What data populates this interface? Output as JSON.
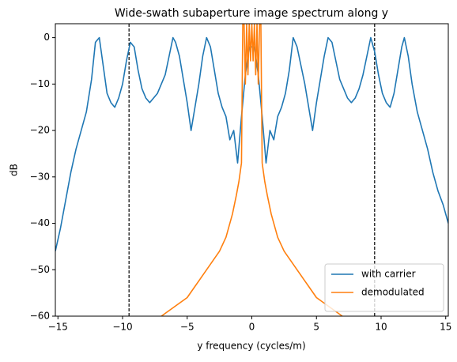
{
  "chart_data": {
    "type": "line",
    "title": "Wide-swath subaperture image spectrum along y",
    "x_label": "y frequency (cycles/m)",
    "y_label": "dB",
    "xlim": [
      -15.2,
      15.2
    ],
    "ylim": [
      -60,
      3
    ],
    "xticks": [
      {
        "value": -15,
        "label": "−15"
      },
      {
        "value": -10,
        "label": "−10"
      },
      {
        "value": -5,
        "label": "−5"
      },
      0,
      5,
      10,
      15
    ],
    "yticks": [
      0,
      {
        "value": -10,
        "label": "−10"
      },
      {
        "value": -20,
        "label": "−20"
      },
      {
        "value": -30,
        "label": "−30"
      },
      {
        "value": -40,
        "label": "−40"
      },
      {
        "value": -50,
        "label": "−50"
      },
      {
        "value": -60,
        "label": "−60"
      }
    ],
    "vlines": [
      -9.5,
      9.5
    ],
    "vline_color": "#000000",
    "legend": "lower right",
    "grid": false,
    "series": [
      {
        "name": "with carrier",
        "color": "#1f77b4",
        "x": [
          -15.2,
          -14.8,
          -14.4,
          -14,
          -13.6,
          -13.2,
          -12.8,
          -12.4,
          -12.1,
          -11.8,
          -11.5,
          -11.2,
          -10.9,
          -10.6,
          -10.3,
          -10,
          -9.7,
          -9.4,
          -9.1,
          -8.8,
          -8.5,
          -8.2,
          -7.9,
          -7.6,
          -7.3,
          -7,
          -6.7,
          -6.4,
          -6.1,
          -5.9,
          -5.6,
          -5.3,
          -5,
          -4.7,
          -4.4,
          -4.1,
          -3.8,
          -3.5,
          -3.2,
          -2.9,
          -2.6,
          -2.3,
          -2,
          -1.7,
          -1.4,
          -1.1,
          -0.8,
          -0.5,
          -0.2,
          0.2,
          0.5,
          0.8,
          1.1,
          1.4,
          1.7,
          2,
          2.3,
          2.6,
          2.9,
          3.2,
          3.5,
          3.8,
          4.1,
          4.4,
          4.7,
          5,
          5.3,
          5.6,
          5.9,
          6.2,
          6.5,
          6.8,
          7.1,
          7.4,
          7.7,
          8,
          8.3,
          8.6,
          8.9,
          9.2,
          9.5,
          9.8,
          10.1,
          10.4,
          10.7,
          11,
          11.3,
          11.6,
          11.8,
          12.1,
          12.4,
          12.8,
          13.2,
          13.6,
          14,
          14.4,
          14.8,
          15.2
        ],
        "values": [
          -46,
          -41,
          -35,
          -29,
          -24,
          -20,
          -16,
          -9,
          -1,
          0,
          -6,
          -12,
          -14,
          -15,
          -13,
          -10,
          -5,
          -1,
          -2,
          -7,
          -11,
          -13,
          -14,
          -13,
          -12,
          -10,
          -8,
          -4,
          0,
          -1,
          -4,
          -9,
          -14,
          -20,
          -15,
          -10,
          -4,
          0,
          -2,
          -7,
          -12,
          -15,
          -17,
          -22,
          -20,
          -27,
          -17,
          -8,
          -2,
          -2,
          -8,
          -17,
          -27,
          -20,
          -22,
          -17,
          -15,
          -12,
          -7,
          0,
          -2,
          -6,
          -10,
          -15,
          -20,
          -14,
          -9,
          -4,
          0,
          -1,
          -5,
          -9,
          -11,
          -13,
          -14,
          -13,
          -11,
          -8,
          -4,
          0,
          -3,
          -8,
          -12,
          -14,
          -15,
          -12,
          -7,
          -2,
          0,
          -4,
          -10,
          -16,
          -20,
          -24,
          -29,
          -33,
          -36,
          -40
        ]
      },
      {
        "name": "demodulated",
        "color": "#ff7f0e",
        "x": [
          -7,
          -6.5,
          -6,
          -5.5,
          -5,
          -4.5,
          -4,
          -3.5,
          -3,
          -2.5,
          -2,
          -1.5,
          -1.2,
          -1,
          -0.8,
          -0.7,
          -0.6,
          -0.5,
          -0.4,
          -0.3,
          -0.2,
          -0.1,
          0,
          0.1,
          0.2,
          0.3,
          0.4,
          0.5,
          0.6,
          0.7,
          0.8,
          1,
          1.2,
          1.5,
          2,
          2.5,
          3,
          3.5,
          4,
          4.5,
          5,
          5.5,
          6,
          6.5,
          7
        ],
        "values": [
          -60,
          -59,
          -58,
          -57,
          -56,
          -54,
          -52,
          -50,
          -48,
          -46,
          -43,
          -38,
          -34,
          -31,
          -27,
          3,
          3,
          -10,
          3,
          -8,
          3,
          -5,
          3,
          -5,
          3,
          -8,
          3,
          -10,
          3,
          3,
          -27,
          -31,
          -34,
          -38,
          -43,
          -46,
          -48,
          -50,
          -52,
          -54,
          -56,
          -57,
          -58,
          -59,
          -60
        ]
      }
    ]
  }
}
